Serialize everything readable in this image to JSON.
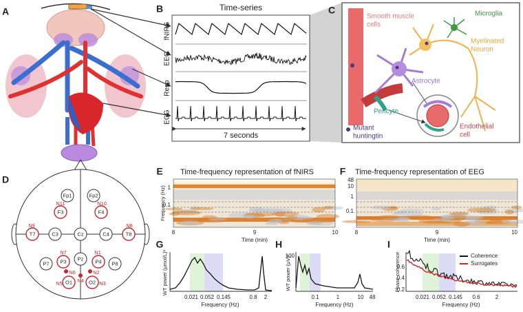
{
  "panel_labels": [
    "A",
    "B",
    "C",
    "D",
    "E",
    "F",
    "G",
    "H",
    "I"
  ],
  "time_series": {
    "title": "Time-series",
    "channels": [
      "fNIRS",
      "EEG",
      "Resp",
      "ECG"
    ],
    "duration": "7 seconds"
  },
  "cells": {
    "smooth_muscle": {
      "lines": [
        "Smooth muscle",
        "cells"
      ]
    },
    "microglia": {
      "lines": [
        "Microglia"
      ]
    },
    "neuron": {
      "lines": [
        "Myelinated",
        "Neuron"
      ]
    },
    "astrocyte": {
      "lines": [
        "Astrocyte"
      ]
    },
    "pericyte": {
      "lines": [
        "Pericyte"
      ]
    },
    "huntingtin": {
      "lines": [
        "Mutant",
        "huntingtin"
      ]
    },
    "endothelial": {
      "lines": [
        "Endothelial",
        "cell"
      ]
    }
  },
  "electrodes": [
    "Fp1",
    "Fp2",
    "F3",
    "F4",
    "T7",
    "C3",
    "Cz",
    "C4",
    "T8",
    "P7",
    "P3",
    "Pz",
    "P4",
    "P8",
    "O1",
    "O2"
  ],
  "nodes": [
    "N11",
    "N10",
    "N9",
    "N8",
    "N7",
    "N1",
    "N6",
    "N2",
    "N5",
    "N4",
    "N3"
  ],
  "tfr_fnirs": {
    "title": "Time-frequency representation of fNIRS",
    "y_label": "Frequency (Hz)",
    "y_ticks": [
      "1",
      "0.1"
    ],
    "x_ticks": [
      "8",
      "9",
      "10"
    ],
    "x_label": "Time (min)"
  },
  "tfr_eeg": {
    "title": "Time-frequency representation of EEG",
    "y_ticks": [
      "48",
      "10",
      "1",
      "0.1"
    ],
    "x_ticks": [
      "8",
      "9",
      "10"
    ],
    "x_label": "Time (min)"
  },
  "power_fnirs": {
    "y_label": "WT power (μmol/L)²",
    "x_ticks": [
      "0.021",
      "0.052",
      "0.145",
      "0.8",
      "2"
    ],
    "x_label": "Frequency (Hz)"
  },
  "power_eeg": {
    "y_label": "WT power (μV)²",
    "y_ticks": [
      "100"
    ],
    "x_ticks": [
      "0.1",
      "1",
      "10",
      "48"
    ],
    "x_label": "Frequency (Hz)"
  },
  "coherence": {
    "y_label": "Phase coherence",
    "y_ticks": [
      "0.6",
      "0.4",
      "0.2"
    ],
    "x_ticks": [
      "0.021",
      "0.052",
      "0.145",
      "0.6",
      "2"
    ],
    "x_label": "Frequency (Hz)",
    "legend": [
      "Coherence",
      "Surrogates"
    ]
  }
}
